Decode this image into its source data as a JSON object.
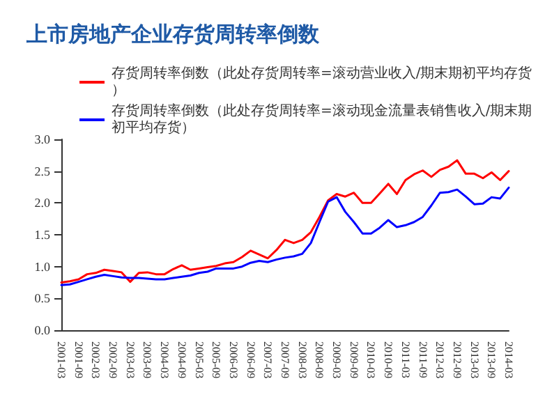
{
  "chart_data": {
    "type": "line",
    "title": "上市房地产企业存货周转率倒数",
    "categories": [
      "2001-03",
      null,
      "2001-09",
      null,
      "2002-03",
      null,
      "2002-09",
      null,
      "2003-03",
      null,
      "2003-09",
      null,
      "2004-03",
      null,
      "2004-09",
      null,
      "2005-03",
      null,
      "2005-09",
      null,
      "2006-03",
      null,
      "2006-09",
      null,
      "2007-03",
      null,
      "2007-09",
      null,
      "2008-03",
      null,
      "2008-09",
      null,
      "2009-03",
      null,
      "2009-09",
      null,
      "2010-03",
      null,
      "2010-09",
      null,
      "2011-03",
      null,
      "2011-09",
      null,
      "2012-03",
      null,
      "2012-09",
      null,
      "2013-03",
      null,
      "2013-09",
      null,
      "2014-03"
    ],
    "series": [
      {
        "name": "存货周转率倒数（此处存货周转率=滚动营业收入/期末期初平均存货）",
        "color": "#ff0000",
        "values": [
          0.75,
          0.77,
          0.8,
          0.88,
          0.9,
          0.95,
          0.93,
          0.91,
          0.76,
          0.9,
          0.91,
          0.88,
          0.88,
          0.96,
          1.02,
          0.95,
          0.97,
          0.99,
          1.01,
          1.05,
          1.07,
          1.15,
          1.25,
          1.19,
          1.13,
          1.26,
          1.42,
          1.37,
          1.42,
          1.54,
          1.78,
          2.04,
          2.14,
          2.1,
          2.16,
          2.0,
          2.0,
          2.15,
          2.3,
          2.14,
          2.36,
          2.45,
          2.51,
          2.41,
          2.52,
          2.57,
          2.67,
          2.46,
          2.46,
          2.39,
          2.48,
          2.36,
          2.5
        ]
      },
      {
        "name": "存货周转率倒数（此处存货周转率=滚动现金流量表销售收入/期末期初平均存货）",
        "color": "#0000ff",
        "values": [
          0.71,
          0.72,
          0.76,
          0.8,
          0.84,
          0.87,
          0.85,
          0.83,
          0.82,
          0.82,
          0.81,
          0.8,
          0.8,
          0.82,
          0.84,
          0.86,
          0.9,
          0.92,
          0.97,
          0.97,
          0.97,
          1.0,
          1.06,
          1.09,
          1.07,
          1.11,
          1.14,
          1.16,
          1.2,
          1.37,
          1.7,
          2.02,
          2.09,
          1.86,
          1.7,
          1.52,
          1.52,
          1.61,
          1.73,
          1.62,
          1.65,
          1.7,
          1.78,
          1.96,
          2.16,
          2.17,
          2.21,
          2.1,
          1.98,
          1.99,
          2.09,
          2.07,
          2.24
        ]
      }
    ],
    "ylim": [
      0,
      3
    ],
    "yticks": [
      {
        "value": 0,
        "label": "0.0"
      },
      {
        "value": 0.5,
        "label": "0.5"
      },
      {
        "value": 1,
        "label": "1.0"
      },
      {
        "value": 1.5,
        "label": "1.5"
      },
      {
        "value": 2,
        "label": "2.0"
      },
      {
        "value": 2.5,
        "label": "2.5"
      },
      {
        "value": 3,
        "label": "3.0"
      }
    ],
    "grid": false,
    "legend": "top left",
    "marker": "none",
    "line_style": "solid"
  }
}
